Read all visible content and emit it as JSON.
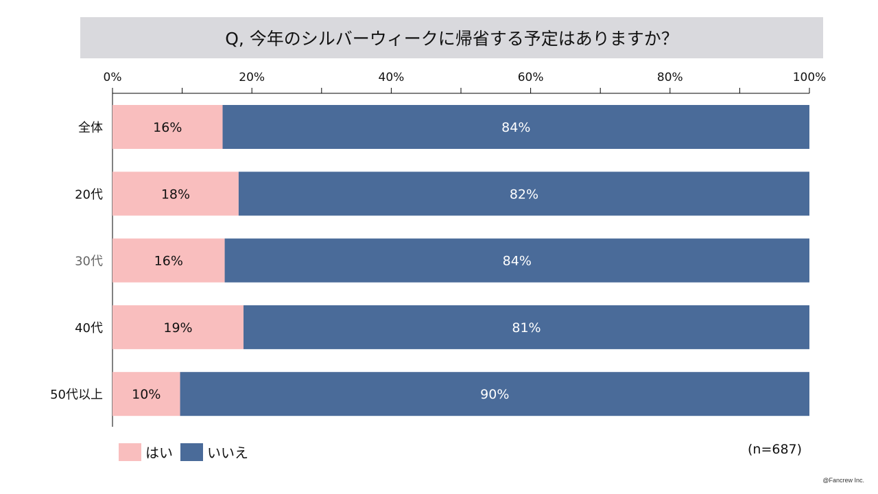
{
  "chart_data": {
    "type": "bar",
    "orientation": "horizontal",
    "stacked": true,
    "percent": true,
    "title": "Q, 今年のシルバーウィークに帰省する予定はありますか？",
    "categories": [
      "全体",
      "20代",
      "30代",
      "40代",
      "50代以上"
    ],
    "series": [
      {
        "name": "はい",
        "color": "#f9bebe",
        "values": [
          15.8,
          18.1,
          16.1,
          18.8,
          9.7
        ],
        "labels": [
          "16%",
          "18%",
          "16%",
          "19%",
          "10%"
        ]
      },
      {
        "name": "いいえ",
        "color": "#4a6b99",
        "values": [
          84.2,
          81.9,
          83.9,
          81.2,
          90.3
        ],
        "labels": [
          "84%",
          "82%",
          "84%",
          "81%",
          "90%"
        ]
      }
    ],
    "xlim": [
      0,
      100
    ],
    "xticks": [
      "0%",
      "20%",
      "40%",
      "60%",
      "80%",
      "100%"
    ],
    "legend_position": "bottom-left",
    "category_label_colors": [
      "#111111",
      "#111111",
      "#666666",
      "#111111",
      "#111111"
    ]
  },
  "note": "(n=687)",
  "copyright": "@Fancrew Inc."
}
